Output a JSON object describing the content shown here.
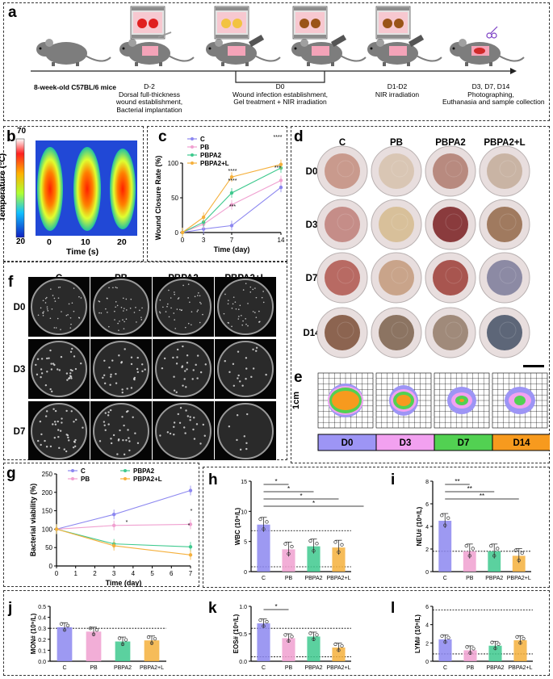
{
  "panels": {
    "a": "a",
    "b": "b",
    "c": "c",
    "d": "d",
    "e": "e",
    "f": "f",
    "g": "g",
    "h": "h",
    "i": "i",
    "j": "j",
    "k": "k",
    "l": "l"
  },
  "timeline": {
    "step1": "8-week-old C57BL/6 mice",
    "step2_day": "D-2",
    "step2_l1": "Dorsal full-thickness",
    "step2_l2": "wound establishment,",
    "step2_l3": "Bacterial implantation",
    "step3_day": "D0",
    "step3_l1": "Wound infection establishment,",
    "step3_l2": "Gel treatment + NIR irradiation",
    "step4_day": "D1-D2",
    "step4_l1": "NIR irradiation",
    "step5_day": "D3, D7, D14",
    "step5_l1": "Photographing,",
    "step5_l2": "Euthanasia and sample collection"
  },
  "thermal": {
    "cbar_max": "70",
    "cbar_min": "20",
    "cbar_label": "Temperature (°C)",
    "xticks": [
      "0",
      "10",
      "20"
    ],
    "xlabel": "Time (s)"
  },
  "groups": [
    "C",
    "PB",
    "PBPA2",
    "PBPA2+L"
  ],
  "photo_rows": [
    "D0",
    "D3",
    "D7",
    "D14"
  ],
  "plate_rows": [
    "D0",
    "D3",
    "D7"
  ],
  "grid": {
    "scale_label": "1cm",
    "legend": [
      "D0",
      "D3",
      "D7",
      "D14"
    ],
    "legend_colors": [
      "#9d95f5",
      "#f2a1f0",
      "#52d152",
      "#f79a1e"
    ]
  },
  "colors": {
    "C": "#8c87f0",
    "PB": "#f0a0d0",
    "PBPA2": "#3ec98e",
    "PBPA2+L": "#f5b03c"
  },
  "chart_data": [
    {
      "panel": "c",
      "type": "line",
      "ylabel": "Wound Closure Rate (%)",
      "xlabel": "Time (day)",
      "x": [
        0,
        3,
        7,
        14
      ],
      "xticks": [
        "0",
        "3",
        "7",
        "14"
      ],
      "ylim": [
        0,
        100
      ],
      "yticks": [
        "0",
        "50",
        "100"
      ],
      "series": [
        {
          "name": "C",
          "values": [
            0,
            5,
            10,
            65
          ]
        },
        {
          "name": "PB",
          "values": [
            0,
            12,
            40,
            75
          ]
        },
        {
          "name": "PBPA2",
          "values": [
            0,
            15,
            57,
            93
          ]
        },
        {
          "name": "PBPA2+L",
          "values": [
            0,
            22,
            80,
            98
          ]
        }
      ],
      "annotations": [
        "****",
        "****",
        "***",
        "****",
        "***"
      ]
    },
    {
      "panel": "g",
      "type": "line",
      "ylabel": "Bacterial viability (%)",
      "xlabel": "Time (day)",
      "x": [
        0,
        1,
        2,
        3,
        4,
        5,
        6,
        7
      ],
      "xticks": [
        "0",
        "1",
        "2",
        "3",
        "4",
        "5",
        "6",
        "7"
      ],
      "ylim": [
        0,
        250
      ],
      "yticks": [
        "0",
        "50",
        "100",
        "150",
        "200",
        "250"
      ],
      "series": [
        {
          "name": "C",
          "x": [
            0,
            3,
            7
          ],
          "values": [
            100,
            140,
            205
          ]
        },
        {
          "name": "PB",
          "x": [
            0,
            3,
            7
          ],
          "values": [
            100,
            110,
            113
          ]
        },
        {
          "name": "PBPA2",
          "x": [
            0,
            3,
            7
          ],
          "values": [
            100,
            60,
            52
          ]
        },
        {
          "name": "PBPA2+L",
          "x": [
            0,
            3,
            7
          ],
          "values": [
            100,
            55,
            30
          ]
        }
      ],
      "annotations": [
        "*",
        "*",
        "*"
      ]
    },
    {
      "panel": "h",
      "type": "bar",
      "ylabel": "WBC (10⁹/L)",
      "categories": [
        "C",
        "PB",
        "PBPA2",
        "PBPA2+L"
      ],
      "values": [
        7.8,
        3.7,
        4.2,
        4.0
      ],
      "ylim": [
        0,
        15
      ],
      "yticks": [
        "0",
        "5",
        "10",
        "15"
      ],
      "ref_lines": [
        6.8,
        0.8
      ],
      "sig": [
        "*",
        "*",
        "*",
        "*"
      ]
    },
    {
      "panel": "i",
      "type": "bar",
      "ylabel": "NEU# (10⁹/L)",
      "categories": [
        "C",
        "PB",
        "PBPA2",
        "PBPA2+L"
      ],
      "values": [
        4.5,
        1.8,
        1.8,
        1.4
      ],
      "ylim": [
        0,
        8
      ],
      "yticks": [
        "0",
        "2",
        "4",
        "6",
        "8"
      ],
      "ref_lines": [
        1.8
      ],
      "sig": [
        "**",
        "**",
        "**"
      ]
    },
    {
      "panel": "j",
      "type": "bar",
      "ylabel": "MON# (10⁹/L)",
      "categories": [
        "C",
        "PB",
        "PBPA2",
        "PBPA2+L"
      ],
      "values": [
        0.31,
        0.27,
        0.18,
        0.19
      ],
      "ylim": [
        0,
        0.5
      ],
      "yticks": [
        "0.0",
        "0.1",
        "0.2",
        "0.3",
        "0.4",
        "0.5"
      ],
      "ref_lines": [
        0.3
      ],
      "sig": []
    },
    {
      "panel": "k",
      "type": "bar",
      "ylabel": "EOS# (10⁹/L)",
      "categories": [
        "C",
        "PB",
        "PBPA2",
        "PBPA2+L"
      ],
      "values": [
        0.69,
        0.42,
        0.45,
        0.25
      ],
      "ylim": [
        0,
        1.0
      ],
      "yticks": [
        "0.0",
        "0.5",
        "1.0"
      ],
      "ref_lines": [
        0.6,
        0.08
      ],
      "sig": [
        "*"
      ]
    },
    {
      "panel": "l",
      "type": "bar",
      "ylabel": "LYM# (10⁹/L)",
      "categories": [
        "C",
        "PB",
        "PBPA2",
        "PBPA2+L"
      ],
      "values": [
        2.4,
        1.2,
        1.7,
        2.3
      ],
      "ylim": [
        0,
        6
      ],
      "yticks": [
        "0",
        "2",
        "4",
        "6"
      ],
      "ref_lines": [
        5.6,
        0.8
      ],
      "sig": []
    }
  ]
}
